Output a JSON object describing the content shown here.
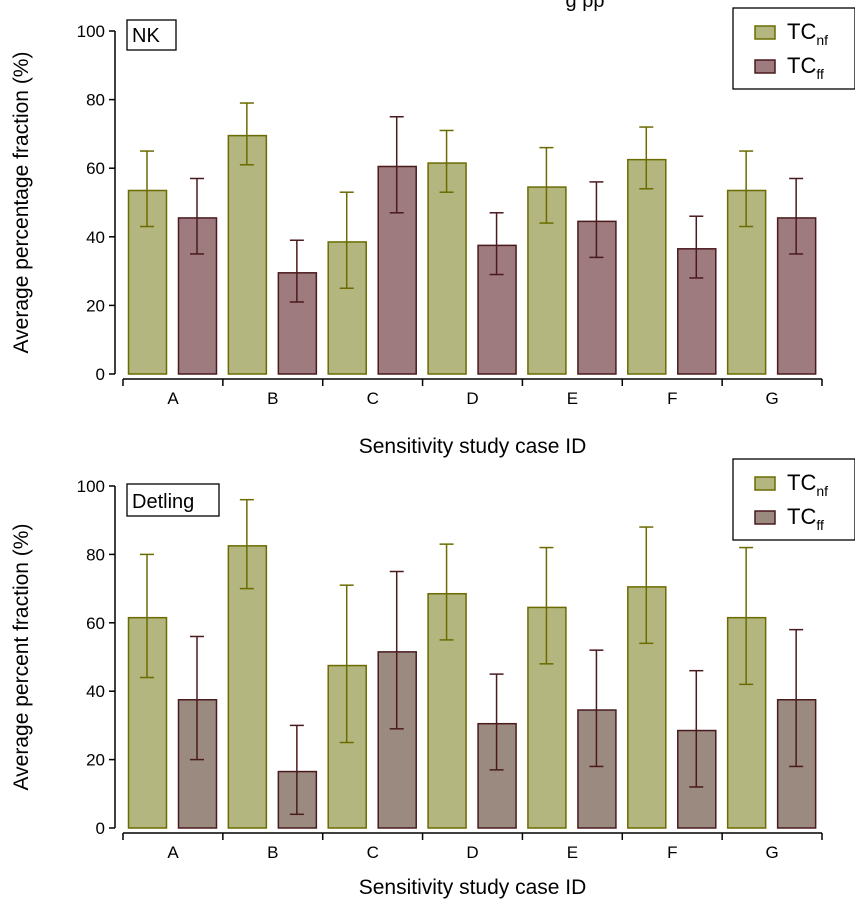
{
  "figure": {
    "top_caption_fragment": "g                          pp"
  },
  "chart_data": [
    {
      "type": "bar",
      "panel_label": "NK",
      "xlabel": "Sensitivity study case ID",
      "ylabel": "Average percentage fraction (%)",
      "ylim": [
        0,
        100
      ],
      "yticks": [
        0,
        20,
        40,
        60,
        80,
        100
      ],
      "categories": [
        "A",
        "B",
        "C",
        "D",
        "E",
        "F",
        "G"
      ],
      "legend": {
        "position": "top-right"
      },
      "series": [
        {
          "name": "TC",
          "name_sub": "nf",
          "color": "#b3b67e",
          "edge": "#6b6b00",
          "values": [
            53.5,
            69.5,
            38.5,
            61.5,
            54.5,
            62.5,
            53.5
          ],
          "err_low": [
            43,
            61,
            25,
            53,
            44,
            54,
            43
          ],
          "err_high": [
            65,
            79,
            53,
            71,
            66,
            72,
            65
          ]
        },
        {
          "name": "TC",
          "name_sub": "ff",
          "color": "#9d7b7e",
          "edge": "#4a1a1e",
          "values": [
            45.5,
            29.5,
            60.5,
            37.5,
            44.5,
            36.5,
            45.5
          ],
          "err_low": [
            35,
            21,
            47,
            29,
            34,
            28,
            35
          ],
          "err_high": [
            57,
            39,
            75,
            47,
            56,
            46,
            57
          ]
        }
      ]
    },
    {
      "type": "bar",
      "panel_label": "Detling",
      "xlabel": "Sensitivity study case ID",
      "ylabel": "Average percent fraction (%)",
      "ylim": [
        0,
        100
      ],
      "yticks": [
        0,
        20,
        40,
        60,
        80,
        100
      ],
      "categories": [
        "A",
        "B",
        "C",
        "D",
        "E",
        "F",
        "G"
      ],
      "legend": {
        "position": "top-right"
      },
      "series": [
        {
          "name": "TC",
          "name_sub": "nf",
          "color": "#b3b67e",
          "edge": "#6b6b00",
          "values": [
            61.5,
            82.5,
            47.5,
            68.5,
            64.5,
            70.5,
            61.5
          ],
          "err_low": [
            44,
            70,
            25,
            55,
            48,
            54,
            42
          ],
          "err_high": [
            80,
            96,
            71,
            83,
            82,
            88,
            82
          ]
        },
        {
          "name": "TC",
          "name_sub": "ff",
          "color": "#9b8a80",
          "edge": "#4a1a1e",
          "values": [
            37.5,
            16.5,
            51.5,
            30.5,
            34.5,
            28.5,
            37.5
          ],
          "err_low": [
            20,
            4,
            29,
            17,
            18,
            12,
            18
          ],
          "err_high": [
            56,
            30,
            75,
            45,
            52,
            46,
            58
          ]
        }
      ]
    }
  ]
}
